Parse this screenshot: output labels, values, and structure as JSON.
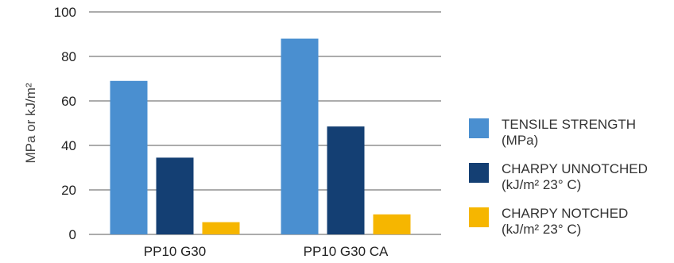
{
  "chart_data": {
    "type": "bar",
    "categories": [
      "PP10 G30",
      "PP10 G30 CA"
    ],
    "series": [
      {
        "name": [
          "TENSILE STRENGTH",
          "(MPa)"
        ],
        "color": "#4A8FD0",
        "values": [
          69,
          88
        ]
      },
      {
        "name": [
          "CHARPY UNNOTCHED",
          "(kJ/m² 23° C)"
        ],
        "color": "#143F73",
        "values": [
          34.5,
          48.5
        ]
      },
      {
        "name": [
          "CHARPY NOTCHED",
          "(kJ/m²  23° C)"
        ],
        "color": "#F6B600",
        "values": [
          5.5,
          9
        ]
      }
    ],
    "ylabel": "MPa or kJ/m²",
    "ylim": [
      0,
      100
    ],
    "yticks": [
      0,
      20,
      40,
      60,
      80,
      100
    ],
    "grid": true,
    "legend": "right"
  }
}
